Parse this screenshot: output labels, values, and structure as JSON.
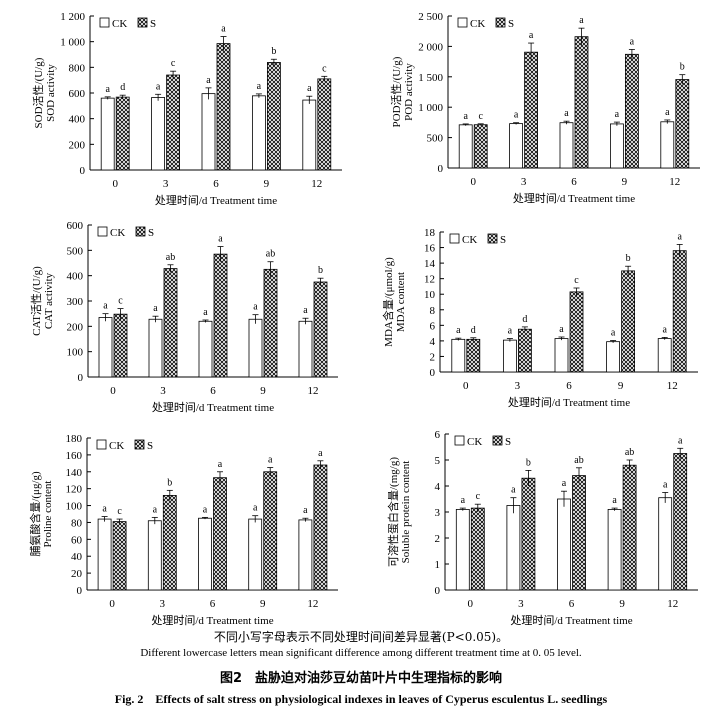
{
  "chart_data": [
    {
      "type": "bar",
      "ylabel_cn": "SOD活性/(U/g)",
      "ylabel_en": "SOD activity",
      "xlabel": "处理时间/d  Treatment time",
      "categories": [
        "0",
        "3",
        "6",
        "9",
        "12"
      ],
      "ylim": [
        0,
        1200
      ],
      "yticks": [
        0,
        200,
        400,
        600,
        800,
        1000,
        1200
      ],
      "ytick_labels": [
        "0",
        "200",
        "400",
        "600",
        "800",
        "1 000",
        "1 200"
      ],
      "legend": [
        "CK",
        "S"
      ],
      "series": [
        {
          "name": "CK",
          "values": [
            560,
            565,
            595,
            578,
            545
          ],
          "errors": [
            10,
            25,
            45,
            15,
            30
          ],
          "letters": [
            "a",
            "a",
            "a",
            "a",
            "a"
          ]
        },
        {
          "name": "S",
          "values": [
            568,
            740,
            985,
            838,
            710
          ],
          "errors": [
            15,
            30,
            55,
            25,
            20
          ],
          "letters": [
            "d",
            "c",
            "a",
            "b",
            "c"
          ]
        }
      ]
    },
    {
      "type": "bar",
      "ylabel_cn": "POD活性/(U/g)",
      "ylabel_en": "POD activity",
      "xlabel": "处理时间/d  Treatment time",
      "categories": [
        "0",
        "3",
        "6",
        "9",
        "12"
      ],
      "ylim": [
        0,
        2500
      ],
      "yticks": [
        0,
        500,
        1000,
        1500,
        2000,
        2500
      ],
      "ytick_labels": [
        "0",
        "500",
        "1 000",
        "1 500",
        "2 000",
        "2 500"
      ],
      "legend": [
        "CK",
        "S"
      ],
      "series": [
        {
          "name": "CK",
          "values": [
            710,
            730,
            745,
            725,
            760
          ],
          "errors": [
            15,
            15,
            25,
            30,
            30
          ],
          "letters": [
            "a",
            "a",
            "a",
            "a",
            "a"
          ]
        },
        {
          "name": "S",
          "values": [
            712,
            1905,
            2160,
            1870,
            1455
          ],
          "errors": [
            15,
            150,
            140,
            80,
            80
          ],
          "letters": [
            "c",
            "a",
            "a",
            "a",
            "b"
          ]
        }
      ]
    },
    {
      "type": "bar",
      "ylabel_cn": "CAT活性/(U/g)",
      "ylabel_en": "CAT activity",
      "xlabel": "处理时间/d  Treatment time",
      "categories": [
        "0",
        "3",
        "6",
        "9",
        "12"
      ],
      "ylim": [
        0,
        600
      ],
      "yticks": [
        0,
        100,
        200,
        300,
        400,
        500,
        600
      ],
      "ytick_labels": [
        "0",
        "100",
        "200",
        "300",
        "400",
        "500",
        "600"
      ],
      "legend": [
        "CK",
        "S"
      ],
      "series": [
        {
          "name": "CK",
          "values": [
            235,
            228,
            220,
            228,
            220
          ],
          "errors": [
            15,
            12,
            5,
            18,
            12
          ],
          "letters": [
            "a",
            "a",
            "a",
            "a",
            "a"
          ]
        },
        {
          "name": "S",
          "values": [
            248,
            428,
            485,
            425,
            375
          ],
          "errors": [
            22,
            15,
            30,
            30,
            15
          ],
          "letters": [
            "c",
            "ab",
            "a",
            "ab",
            "b"
          ]
        }
      ]
    },
    {
      "type": "bar",
      "ylabel_cn": "MDA含量/(μmol/g)",
      "ylabel_en": "MDA content",
      "xlabel": "处理时间/d  Treatment time",
      "categories": [
        "0",
        "3",
        "6",
        "9",
        "12"
      ],
      "ylim": [
        0,
        18
      ],
      "yticks": [
        0,
        2,
        4,
        6,
        8,
        10,
        12,
        14,
        16,
        18
      ],
      "ytick_labels": [
        "0",
        "2",
        "4",
        "6",
        "8",
        "10",
        "12",
        "14",
        "16",
        "18"
      ],
      "legend": [
        "CK",
        "S"
      ],
      "series": [
        {
          "name": "CK",
          "values": [
            4.2,
            4.1,
            4.3,
            3.9,
            4.3
          ],
          "errors": [
            0.15,
            0.2,
            0.2,
            0.15,
            0.15
          ],
          "letters": [
            "a",
            "a",
            "a",
            "a",
            "a"
          ]
        },
        {
          "name": "S",
          "values": [
            4.2,
            5.5,
            10.3,
            13.0,
            15.6
          ],
          "errors": [
            0.2,
            0.3,
            0.5,
            0.6,
            0.8
          ],
          "letters": [
            "d",
            "d",
            "c",
            "b",
            "a"
          ]
        }
      ]
    },
    {
      "type": "bar",
      "ylabel_cn": "脯氨酸含量/(μg/g)",
      "ylabel_en": "Proline content",
      "xlabel": "处理时间/d  Treatment time",
      "categories": [
        "0",
        "3",
        "6",
        "9",
        "12"
      ],
      "ylim": [
        0,
        180
      ],
      "yticks": [
        0,
        20,
        40,
        60,
        80,
        100,
        120,
        140,
        160,
        180
      ],
      "ytick_labels": [
        "0",
        "20",
        "40",
        "60",
        "80",
        "100",
        "120",
        "140",
        "160",
        "180"
      ],
      "legend": [
        "CK",
        "S"
      ],
      "series": [
        {
          "name": "CK",
          "values": [
            84,
            82,
            85,
            84,
            83
          ],
          "errors": [
            3,
            4,
            1,
            4,
            2
          ],
          "letters": [
            "a",
            "a",
            "a",
            "a",
            "a"
          ]
        },
        {
          "name": "S",
          "values": [
            81,
            112,
            133,
            140,
            148
          ],
          "errors": [
            3,
            6,
            7,
            5,
            5
          ],
          "letters": [
            "c",
            "b",
            "a",
            "a",
            "a"
          ]
        }
      ]
    },
    {
      "type": "bar",
      "ylabel_cn": "可溶性蛋白含量/(mg/g)",
      "ylabel_en": "Soluble protein content",
      "xlabel": "处理时间/d  Treatment time",
      "categories": [
        "0",
        "3",
        "6",
        "9",
        "12"
      ],
      "ylim": [
        0,
        6
      ],
      "yticks": [
        0,
        1,
        2,
        3,
        4,
        5,
        6
      ],
      "ytick_labels": [
        "0",
        "1",
        "2",
        "3",
        "4",
        "5",
        "6"
      ],
      "legend": [
        "CK",
        "S"
      ],
      "series": [
        {
          "name": "CK",
          "values": [
            3.1,
            3.25,
            3.5,
            3.1,
            3.55
          ],
          "errors": [
            0.05,
            0.3,
            0.3,
            0.05,
            0.2
          ],
          "letters": [
            "a",
            "a",
            "a",
            "a",
            "a"
          ]
        },
        {
          "name": "S",
          "values": [
            3.15,
            4.3,
            4.4,
            4.8,
            5.25
          ],
          "errors": [
            0.15,
            0.3,
            0.3,
            0.2,
            0.2
          ],
          "letters": [
            "c",
            "b",
            "ab",
            "ab",
            "a"
          ]
        }
      ]
    }
  ],
  "caption": {
    "note_cn": "不同小写字母表示不同处理时间间差异显著(P<0.05)。",
    "note_en": "Different lowercase letters mean significant difference among different treatment time at 0. 05 level.",
    "title_cn": "图2　盐胁迫对油莎豆幼苗叶片中生理指标的影响",
    "title_en": "Fig. 2　Effects of salt stress on physiological indexes in leaves of Cyperus esculentus L. seedlings"
  }
}
